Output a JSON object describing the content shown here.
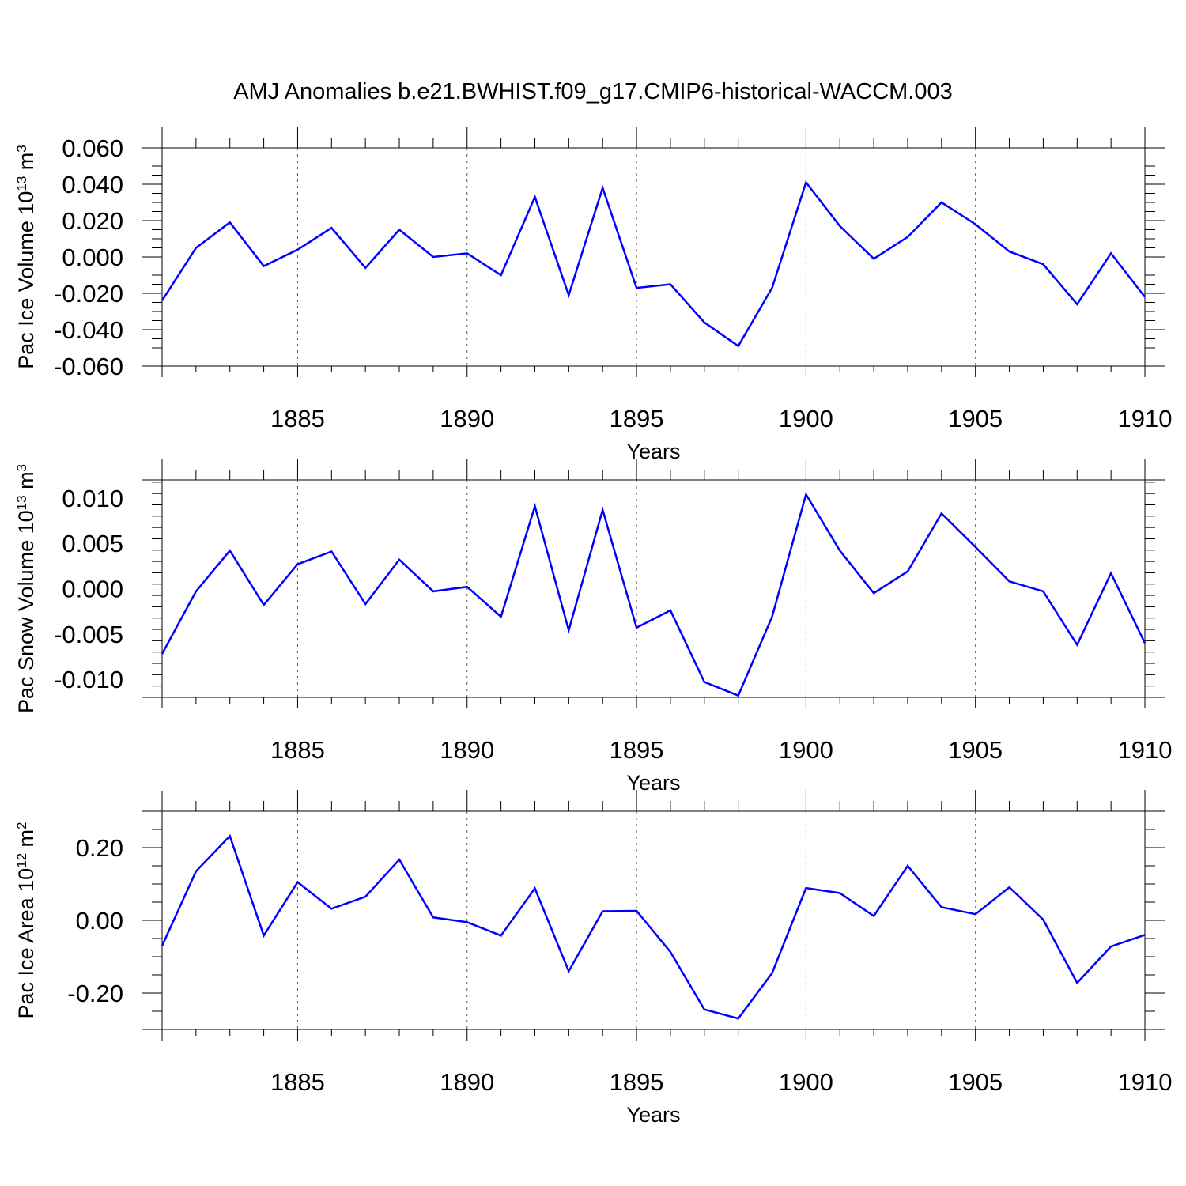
{
  "figure": {
    "title": "AMJ Anomalies b.e21.BWHIST.f09_g17.CMIP6-historical-WACCM.003",
    "line_color": "#0000ff"
  },
  "chart_data": [
    {
      "type": "line",
      "title": "",
      "xlabel": "Years",
      "ylabel": "Pac Ice Volume 10^13 m^3",
      "ylabel_parts": {
        "main": "Pac Ice Volume 10",
        "exp": "13",
        "unit": " m",
        "unit_exp": "3"
      },
      "xlim": [
        1881,
        1910
      ],
      "ylim": [
        -0.06,
        0.06
      ],
      "xticks": [
        1885,
        1890,
        1895,
        1900,
        1905,
        1910
      ],
      "xtick_labels": [
        "1885",
        "1890",
        "1895",
        "1900",
        "1905",
        "1910"
      ],
      "yticks": [
        -0.06,
        -0.04,
        -0.02,
        0.0,
        0.02,
        0.04,
        0.06
      ],
      "ytick_labels": [
        "-0.060",
        "-0.040",
        "-0.020",
        "0.000",
        "0.020",
        "0.040",
        "0.060"
      ],
      "grid": "vertical dashed at labeled years",
      "x": [
        1881,
        1882,
        1883,
        1884,
        1885,
        1886,
        1887,
        1888,
        1889,
        1890,
        1891,
        1892,
        1893,
        1894,
        1895,
        1896,
        1897,
        1898,
        1899,
        1900,
        1901,
        1902,
        1903,
        1904,
        1905,
        1906,
        1907,
        1908,
        1909,
        1910
      ],
      "series": [
        {
          "values": [
            -0.024,
            0.005,
            0.019,
            -0.005,
            0.004,
            0.016,
            -0.006,
            0.015,
            0.0,
            0.002,
            -0.01,
            0.033,
            -0.021,
            0.038,
            -0.017,
            -0.015,
            -0.036,
            -0.049,
            -0.017,
            0.041,
            0.017,
            -0.001,
            0.011,
            0.03,
            0.018,
            0.003,
            -0.004,
            -0.026,
            0.002,
            -0.022
          ]
        }
      ]
    },
    {
      "type": "line",
      "title": "",
      "xlabel": "Years",
      "ylabel": "Pac Snow Volume 10^13 m^3",
      "ylabel_parts": {
        "main": "Pac Snow Volume 10",
        "exp": "13",
        "unit": " m",
        "unit_exp": "3"
      },
      "xlim": [
        1881,
        1910
      ],
      "ylim": [
        -0.012,
        0.012
      ],
      "xticks": [
        1885,
        1890,
        1895,
        1900,
        1905,
        1910
      ],
      "xtick_labels": [
        "1885",
        "1890",
        "1895",
        "1900",
        "1905",
        "1910"
      ],
      "yticks": [
        -0.01,
        -0.005,
        0.0,
        0.005,
        0.01
      ],
      "ytick_labels": [
        "-0.010",
        "-0.005",
        "0.000",
        "0.005",
        "0.010"
      ],
      "grid": "vertical dashed at labeled years",
      "x": [
        1881,
        1882,
        1883,
        1884,
        1885,
        1886,
        1887,
        1888,
        1889,
        1890,
        1891,
        1892,
        1893,
        1894,
        1895,
        1896,
        1897,
        1898,
        1899,
        1900,
        1901,
        1902,
        1903,
        1904,
        1905,
        1906,
        1907,
        1908,
        1909,
        1910
      ],
      "series": [
        {
          "values": [
            -0.0072,
            -0.0003,
            0.0042,
            -0.0018,
            0.0027,
            0.0041,
            -0.0017,
            0.0032,
            -0.0003,
            0.0002,
            -0.0031,
            0.0091,
            -0.0046,
            0.0087,
            -0.0043,
            -0.0024,
            -0.0103,
            -0.0118,
            -0.0031,
            0.0104,
            0.0042,
            -0.0005,
            0.0019,
            0.0083,
            0.0046,
            0.0008,
            -0.0003,
            -0.0062,
            0.0017,
            -0.006
          ]
        }
      ]
    },
    {
      "type": "line",
      "title": "",
      "xlabel": "Years",
      "ylabel": "Pac Ice Area 10^12 m^2",
      "ylabel_parts": {
        "main": "Pac Ice Area 10",
        "exp": "12",
        "unit": " m",
        "unit_exp": "2"
      },
      "xlim": [
        1881,
        1910
      ],
      "ylim": [
        -0.3,
        0.3
      ],
      "xticks": [
        1885,
        1890,
        1895,
        1900,
        1905,
        1910
      ],
      "xtick_labels": [
        "1885",
        "1890",
        "1895",
        "1900",
        "1905",
        "1910"
      ],
      "yticks": [
        -0.2,
        0.0,
        0.2
      ],
      "ytick_labels": [
        "-0.20",
        "0.00",
        "0.20"
      ],
      "grid": "vertical dashed at labeled years",
      "x": [
        1881,
        1882,
        1883,
        1884,
        1885,
        1886,
        1887,
        1888,
        1889,
        1890,
        1891,
        1892,
        1893,
        1894,
        1895,
        1896,
        1897,
        1898,
        1899,
        1900,
        1901,
        1902,
        1903,
        1904,
        1905,
        1906,
        1907,
        1908,
        1909,
        1910
      ],
      "series": [
        {
          "values": [
            -0.07,
            0.135,
            0.232,
            -0.042,
            0.105,
            0.032,
            0.065,
            0.167,
            0.008,
            -0.005,
            -0.042,
            0.088,
            -0.14,
            0.025,
            0.026,
            -0.087,
            -0.245,
            -0.27,
            -0.145,
            0.089,
            0.075,
            0.012,
            0.15,
            0.036,
            0.017,
            0.091,
            0.002,
            -0.172,
            -0.072,
            -0.04
          ]
        }
      ]
    }
  ]
}
